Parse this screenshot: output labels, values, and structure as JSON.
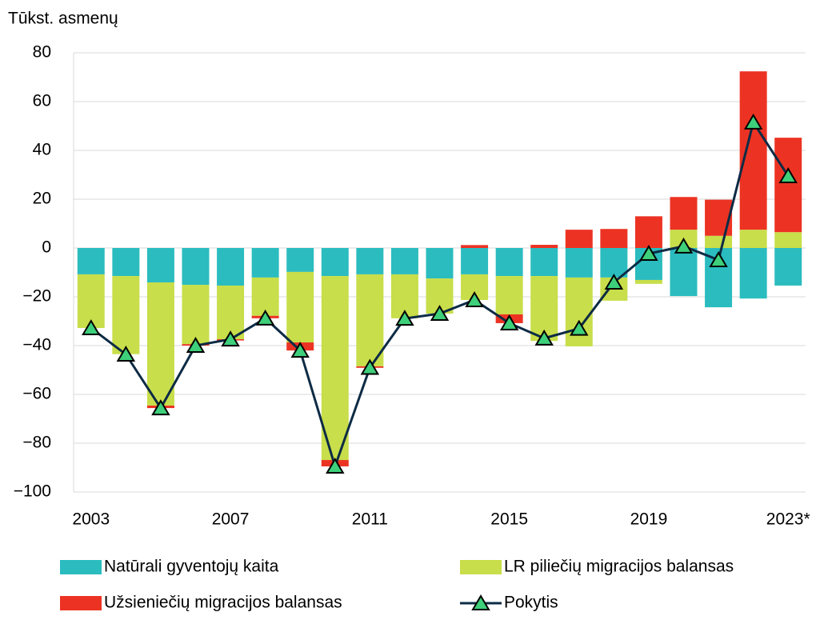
{
  "chart_data": {
    "type": "stacked-bar-line",
    "ylabel": "Tūkst. asmenų",
    "categories": [
      "2003",
      null,
      null,
      null,
      "2007",
      null,
      null,
      null,
      "2011",
      null,
      null,
      null,
      "2015",
      null,
      null,
      null,
      "2019",
      null,
      null,
      null,
      "2023*"
    ],
    "series": [
      {
        "name": "Natūrali gyventojų kaita",
        "color": "#2bbcbf",
        "type": "bar",
        "values": [
          -10.8,
          -11.5,
          -14.1,
          -15.1,
          -15.4,
          -12.1,
          -9.8,
          -11.5,
          -10.8,
          -10.8,
          -12.5,
          -10.8,
          -11.5,
          -11.5,
          -12.1,
          -12.1,
          -13.1,
          -19.7,
          -24.3,
          -20.7,
          -15.4
        ]
      },
      {
        "name": "LR piliečių migracijos balansas",
        "color": "#c8de4a",
        "type": "bar",
        "values": [
          -22,
          -32,
          -50.5,
          -24.3,
          -22,
          -15.7,
          -28.9,
          -75.4,
          -37.7,
          -18,
          -14.4,
          -10.5,
          -15.7,
          -26.6,
          -28.2,
          -9.5,
          -1.6,
          7.5,
          5,
          7.5,
          6.5
        ]
      },
      {
        "name": "Užsieniečių migracijos balansas",
        "color": "#ec3323",
        "type": "bar",
        "values": [
          0,
          0,
          -1,
          -0.6,
          -0.5,
          -1,
          -3.3,
          -2.6,
          -0.6,
          0,
          0,
          1.2,
          -3.6,
          1.3,
          7.5,
          7.8,
          13,
          13.4,
          14.8,
          64.9,
          38.7
        ]
      },
      {
        "name": "Pokytis",
        "color": "#0d2b45",
        "marker_color": "#3ecf7a",
        "type": "line",
        "values": [
          -32.8,
          -43.6,
          -65.6,
          -40,
          -37.4,
          -28.8,
          -42,
          -89.5,
          -49,
          -28.9,
          -26.9,
          -21.3,
          -30.8,
          -37,
          -33,
          -14.1,
          -2.3,
          0.7,
          -4.9,
          51.5,
          29.5
        ]
      }
    ],
    "ylim": [
      -100,
      80
    ],
    "yticks": [
      {
        "value": -100,
        "label": "−100"
      },
      {
        "value": -80,
        "label": "−80"
      },
      {
        "value": -60,
        "label": "−60"
      },
      {
        "value": -40,
        "label": "−40"
      },
      {
        "value": -20,
        "label": "−20"
      },
      0,
      20,
      40,
      60,
      80
    ],
    "grid": true,
    "legend": "bottom"
  }
}
